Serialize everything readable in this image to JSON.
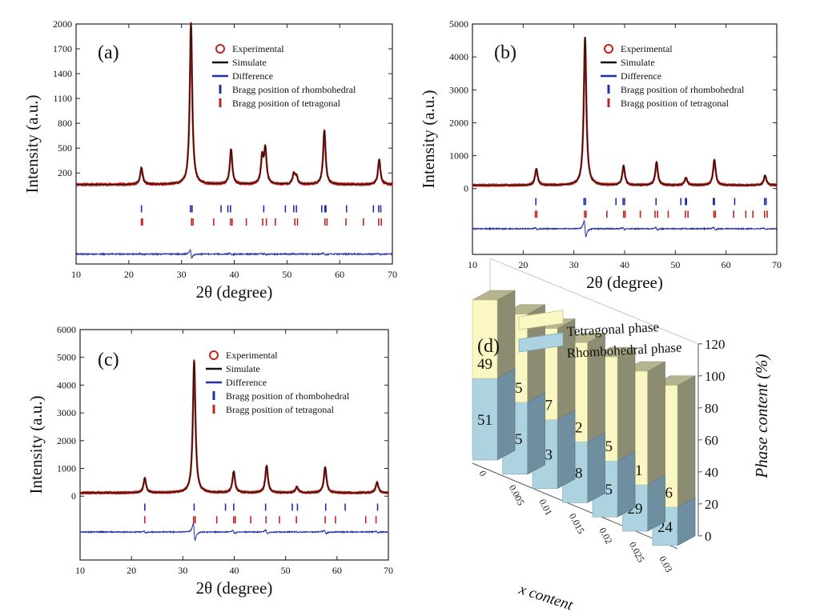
{
  "chart_data": [
    {
      "type": "line",
      "panel_label": "(a)",
      "xlabel": "2θ (degree)",
      "ylabel": "Intensity (a.u.)",
      "xlim": [
        10,
        70
      ],
      "xticks": [
        10,
        20,
        30,
        40,
        50,
        60,
        70
      ],
      "yticks": [
        200,
        500,
        800,
        1100,
        1400,
        1700,
        2000
      ],
      "ylim": [
        -900,
        2000
      ],
      "baseline": 60,
      "noise": 12,
      "diff_offset": -780,
      "diff_amp": 40,
      "peak_width": 0.28,
      "peaks": [
        {
          "x": 22.4,
          "y": 200
        },
        {
          "x": 31.8,
          "y": 1950
        },
        {
          "x": 39.4,
          "y": 420
        },
        {
          "x": 45.3,
          "y": 320
        },
        {
          "x": 45.9,
          "y": 410
        },
        {
          "x": 51.3,
          "y": 120
        },
        {
          "x": 51.8,
          "y": 90
        },
        {
          "x": 57.1,
          "y": 650
        },
        {
          "x": 67.5,
          "y": 300
        }
      ],
      "bragg_rhombohedral": [
        22.4,
        31.7,
        32.0,
        37.5,
        38.8,
        39.3,
        45.6,
        49.7,
        51.3,
        51.8,
        56.6,
        57.2,
        57.4,
        61.3,
        66.4,
        67.4,
        67.8
      ],
      "bragg_tetragonal": [
        22.4,
        22.6,
        31.9,
        32.2,
        36.1,
        39.3,
        39.6,
        42.3,
        45.4,
        46.1,
        47.8,
        51.5,
        52.0,
        57.2,
        57.6,
        61.2,
        64.5,
        67.4,
        67.9
      ],
      "legend": [
        "Experimental",
        "Simulate",
        "Difference",
        "Bragg position of rhombohedral",
        "Bragg position of tetragonal"
      ],
      "colors": {
        "experimental": "#c0241c",
        "simulate": "#111111",
        "difference": "#1f2fa6",
        "rhombohedral": "#1f2fa6",
        "tetragonal": "#c0241c"
      }
    },
    {
      "type": "line",
      "panel_label": "(b)",
      "xlabel": "2θ (degree)",
      "ylabel": "Intensity (a.u.)",
      "xlim": [
        10,
        70
      ],
      "xticks": [
        10,
        20,
        30,
        40,
        50,
        60,
        70
      ],
      "yticks": [
        0,
        1000,
        2000,
        3000,
        4000,
        5000
      ],
      "ylim": [
        -2000,
        5000
      ],
      "baseline": 100,
      "noise": 25,
      "diff_offset": -1220,
      "diff_amp": 90,
      "peak_width": 0.3,
      "peaks": [
        {
          "x": 22.6,
          "y": 500
        },
        {
          "x": 32.2,
          "y": 4500
        },
        {
          "x": 39.8,
          "y": 580
        },
        {
          "x": 46.3,
          "y": 700
        },
        {
          "x": 52.1,
          "y": 230
        },
        {
          "x": 57.7,
          "y": 780
        },
        {
          "x": 67.7,
          "y": 300
        }
      ],
      "bragg_rhombohedral": [
        22.5,
        32.0,
        32.3,
        38.3,
        39.7,
        40.0,
        46.2,
        51.1,
        52.0,
        52.2,
        57.5,
        57.7,
        61.7,
        67.6,
        67.9
      ],
      "bragg_tetragonal": [
        22.4,
        22.7,
        32.1,
        32.4,
        36.5,
        39.8,
        40.1,
        43.1,
        46.0,
        46.5,
        48.6,
        52.0,
        52.5,
        57.6,
        57.9,
        61.5,
        63.9,
        65.3,
        67.6,
        68.1
      ],
      "legend": [
        "Experimental",
        "Simulate",
        "Difference",
        "Bragg position of rhombohedral",
        "Bragg position of tetragonal"
      ],
      "colors": {
        "experimental": "#c0241c",
        "simulate": "#111111",
        "difference": "#1f2fa6",
        "rhombohedral": "#1f2fa6",
        "tetragonal": "#c0241c"
      }
    },
    {
      "type": "line",
      "panel_label": "(c)",
      "xlabel": "2θ (degree)",
      "ylabel": "Intensity (a.u.)",
      "xlim": [
        10,
        70
      ],
      "xticks": [
        10,
        20,
        30,
        40,
        50,
        60,
        70
      ],
      "yticks": [
        0,
        1000,
        2000,
        3000,
        4000,
        5000,
        6000
      ],
      "ylim": [
        -2300,
        6000
      ],
      "baseline": 120,
      "noise": 30,
      "diff_offset": -1290,
      "diff_amp": 110,
      "peak_width": 0.3,
      "peaks": [
        {
          "x": 22.6,
          "y": 520
        },
        {
          "x": 32.2,
          "y": 4750
        },
        {
          "x": 39.9,
          "y": 760
        },
        {
          "x": 46.3,
          "y": 980
        },
        {
          "x": 52.2,
          "y": 220
        },
        {
          "x": 57.7,
          "y": 920
        },
        {
          "x": 67.8,
          "y": 380
        }
      ],
      "bragg_rhombohedral": [
        22.6,
        32.2,
        38.3,
        39.9,
        46.1,
        51.3,
        52.3,
        57.8,
        61.6,
        67.9
      ],
      "bragg_tetragonal": [
        22.6,
        32.1,
        32.4,
        36.6,
        39.9,
        40.2,
        43.2,
        46.2,
        48.8,
        52.1,
        57.7,
        59.7,
        65.6,
        67.6
      ],
      "legend": [
        "Experimental",
        "Simulate",
        "Difference",
        "Bragg position of rhombohedral",
        "Bragg position of tetragonal"
      ],
      "colors": {
        "experimental": "#c0241c",
        "simulate": "#111111",
        "difference": "#1f2fa6",
        "rhombohedral": "#1f2fa6",
        "tetragonal": "#c0241c"
      }
    },
    {
      "type": "bar",
      "stacked": true,
      "panel_label": "(d)",
      "xlabel": "x content",
      "ylabel": "Phase content (%)",
      "categories": [
        "0",
        "0.005",
        "0.01",
        "0.015",
        "0.02",
        "0.025",
        "0.03"
      ],
      "ylim": [
        0,
        120
      ],
      "yticks": [
        0,
        20,
        40,
        60,
        80,
        100,
        120
      ],
      "series": [
        {
          "name": "Rhombohedral phase",
          "values": [
            51,
            45,
            43,
            38,
            35,
            29,
            24
          ],
          "color": "#aed3e0"
        },
        {
          "name": "Tetragonal phase",
          "values": [
            49,
            55,
            57,
            62,
            65,
            71,
            76
          ],
          "color": "#fbf7c2"
        }
      ]
    }
  ]
}
